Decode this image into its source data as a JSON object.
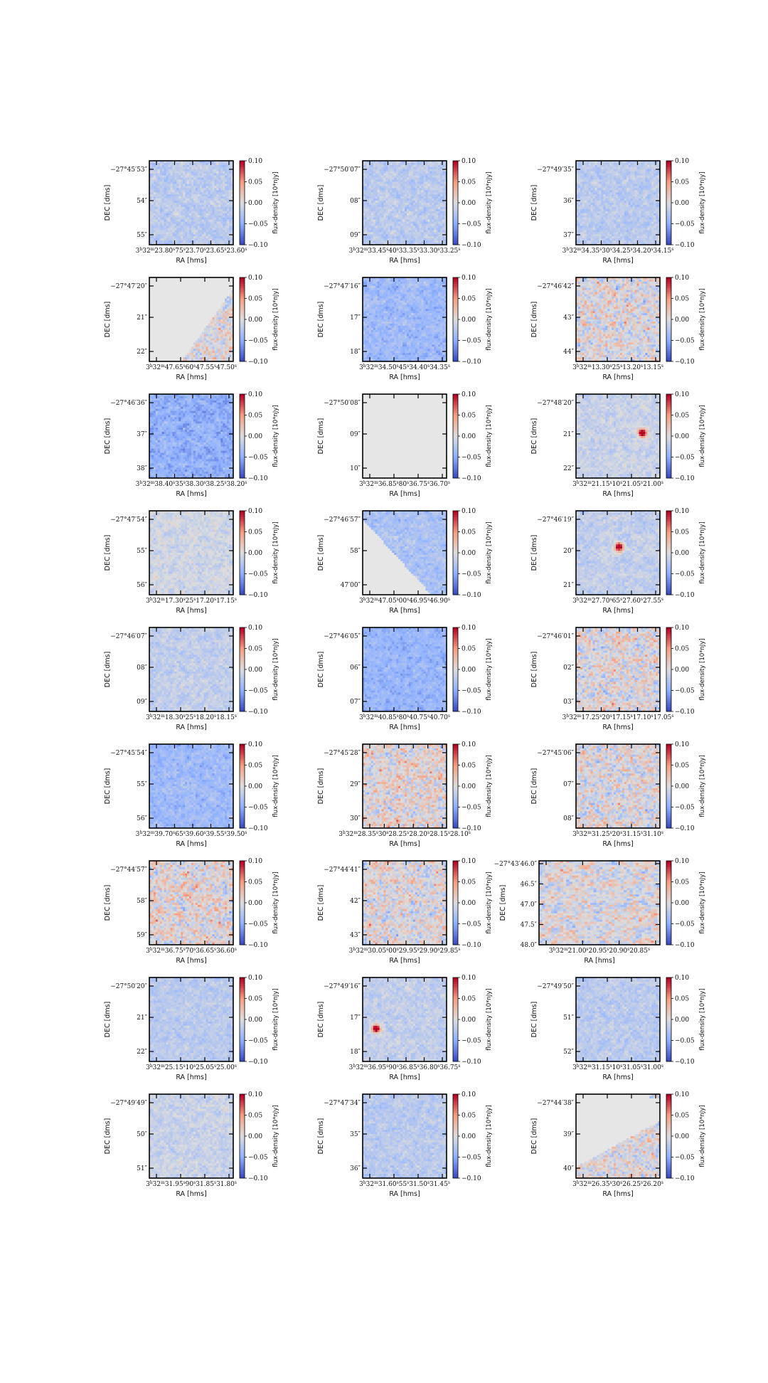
{
  "chart_data": {
    "type": "heatmap",
    "grid": {
      "rows": 9,
      "cols": 3
    },
    "colormap": "coolwarm",
    "colors": {
      "low": "#3b4cc0",
      "mid": "#dddddd",
      "high": "#b40426",
      "masked": "#e6e6e6"
    },
    "xlabel": "RA [hms]",
    "ylabel": "DEC [dms]",
    "colorbar": {
      "label": "flux-density [10*nJy]",
      "range": [
        -0.1,
        0.1
      ],
      "ticks": [
        "0.10",
        "0.05",
        "0.00",
        "−0.05",
        "−0.10"
      ]
    },
    "panels": [
      {
        "xticks": "3h32m23.80s75s23.70s23.65s23.60s",
        "yticks": [
          "−27°45′53″",
          "54″",
          "55″"
        ],
        "noise": 0.55,
        "bias": -0.25,
        "seed": 1
      },
      {
        "xticks": "3h32m33.45s40s33.35s33.30s33.25s",
        "yticks": [
          "−27°50′07″",
          "08″",
          "09″"
        ],
        "noise": 0.55,
        "bias": -0.25,
        "seed": 2
      },
      {
        "xticks": "3h32m34.35s30s34.25s34.20s34.15s",
        "yticks": [
          "−27°49′35″",
          "36″",
          "37″"
        ],
        "noise": 0.5,
        "bias": -0.25,
        "seed": 3
      },
      {
        "xticks": "3h32m47.65s60s47.55s47.50s",
        "yticks": [
          "−27°47′20″",
          "21″",
          "22″"
        ],
        "noise": 1.2,
        "bias": 0.0,
        "seed": 4,
        "mask": "upper-left-diagonal"
      },
      {
        "xticks": "3h32m34.50s45s34.40s34.35s",
        "yticks": [
          "−27°47′16″",
          "17″",
          "18″"
        ],
        "noise": 0.55,
        "bias": -0.45,
        "seed": 5
      },
      {
        "xticks": "3h32m13.30s25s13.20s13.15s",
        "yticks": [
          "−27°46′42″",
          "43″",
          "44″"
        ],
        "noise": 1.3,
        "bias": 0.0,
        "seed": 6
      },
      {
        "xticks": "3h32m38.40s35s38.30s38.25s38.20s",
        "yticks": [
          "−27°46′36″",
          "37″",
          "38″"
        ],
        "noise": 0.6,
        "bias": -0.55,
        "seed": 7
      },
      {
        "xticks": "3h32m36.85s80s36.75s36.70s",
        "yticks": [
          "−27°50′08″",
          "09″",
          "10″"
        ],
        "noise": 0.0,
        "bias": 0.0,
        "seed": 8,
        "mask": "full"
      },
      {
        "xticks": "3h32m21.15s10s21.05s21.00s",
        "yticks": [
          "−27°48′20″",
          "21″",
          "22″"
        ],
        "noise": 0.5,
        "bias": -0.15,
        "seed": 9,
        "source": [
          0.78,
          0.45
        ]
      },
      {
        "xticks": "3h32m17.30s25s17.20s17.15s",
        "yticks": [
          "−27°47′54″",
          "55″",
          "56″"
        ],
        "noise": 0.55,
        "bias": -0.1,
        "seed": 10
      },
      {
        "xticks": "3h32m47.05s00s46.95s46.90s",
        "yticks": [
          "−27°46′57″",
          "58″",
          "47′00″"
        ],
        "noise": 0.55,
        "bias": -0.35,
        "seed": 11,
        "mask": "lower-left-diagonal"
      },
      {
        "xticks": "3h32m27.70s65s27.60s27.55s",
        "yticks": [
          "−27°46′19″",
          "20″",
          "21″"
        ],
        "noise": 0.5,
        "bias": -0.2,
        "seed": 12,
        "source": [
          0.5,
          0.42
        ]
      },
      {
        "xticks": "3h32m18.30s25s18.20s18.15s",
        "yticks": [
          "−27°46′07″",
          "08″",
          "09″"
        ],
        "noise": 0.5,
        "bias": -0.2,
        "seed": 13
      },
      {
        "xticks": "3h32m40.85s80s40.75s40.70s",
        "yticks": [
          "−27°46′05″",
          "06″",
          "07″"
        ],
        "noise": 0.5,
        "bias": -0.5,
        "seed": 14
      },
      {
        "xticks": "3h32m17.25s20s17.15s17.10s17.05s",
        "yticks": [
          "−27°46′01″",
          "02″",
          "03″"
        ],
        "noise": 1.3,
        "bias": 0.0,
        "seed": 15
      },
      {
        "xticks": "3h32m39.70s65s39.60s39.55s39.50s",
        "yticks": [
          "−27°45′54″",
          "55″",
          "56″"
        ],
        "noise": 0.55,
        "bias": -0.45,
        "seed": 16
      },
      {
        "xticks": "3h32m28.35s30s28.25s28.20s28.15s28.10s",
        "yticks": [
          "−27°45′28″",
          "29″",
          "30″"
        ],
        "noise": 1.3,
        "bias": 0.05,
        "seed": 17
      },
      {
        "xticks": "3h32m31.25s20s31.15s31.10s",
        "yticks": [
          "−27°45′06″",
          "07″",
          "08″"
        ],
        "noise": 1.3,
        "bias": 0.0,
        "seed": 18
      },
      {
        "xticks": "3h32m36.75s70s36.65s36.60s",
        "yticks": [
          "−27°44′57″",
          "58″",
          "59″"
        ],
        "noise": 1.35,
        "bias": 0.05,
        "seed": 19
      },
      {
        "xticks": "3h32m30.05s00s29.95s29.90s29.85s",
        "yticks": [
          "−27°44′41″",
          "42″",
          "43″"
        ],
        "noise": 1.3,
        "bias": 0.0,
        "seed": 20
      },
      {
        "xticks": "3h32m21.00s20.95s20.90s20.85s",
        "yticks": [
          "−27°43′46.0″",
          "46.5″",
          "47.0″",
          "47.5″",
          "48.0″"
        ],
        "noise": 1.2,
        "bias": 0.0,
        "seed": 21,
        "wide": true
      },
      {
        "xticks": "3h32m25.15s10s25.05s25.00s",
        "yticks": [
          "−27°50′20″",
          "21″",
          "22″"
        ],
        "noise": 0.45,
        "bias": -0.25,
        "seed": 22
      },
      {
        "xticks": "3h32m36.95s90s36.85s36.80s36.75s",
        "yticks": [
          "−27°49′16″",
          "17″",
          "18″"
        ],
        "noise": 0.5,
        "bias": -0.2,
        "seed": 23,
        "source": [
          0.15,
          0.6
        ]
      },
      {
        "xticks": "3h32m31.15s10s31.05s31.00s",
        "yticks": [
          "−27°49′50″",
          "51″",
          "52″"
        ],
        "noise": 0.5,
        "bias": -0.25,
        "seed": 24
      },
      {
        "xticks": "3h32m31.95s90s31.85s31.80s",
        "yticks": [
          "−27°49′49″",
          "50″",
          "51″"
        ],
        "noise": 0.5,
        "bias": -0.15,
        "seed": 25
      },
      {
        "xticks": "3h32m31.60s55s31.50s31.45s",
        "yticks": [
          "−27°47′34″",
          "35″",
          "36″"
        ],
        "noise": 0.5,
        "bias": -0.25,
        "seed": 26
      },
      {
        "xticks": "3h32m26.35s30s26.25s26.20s",
        "yticks": [
          "−27°44′38″",
          "39″",
          "40″"
        ],
        "noise": 1.2,
        "bias": 0.0,
        "seed": 27,
        "mask": "upper-right-region"
      }
    ]
  }
}
